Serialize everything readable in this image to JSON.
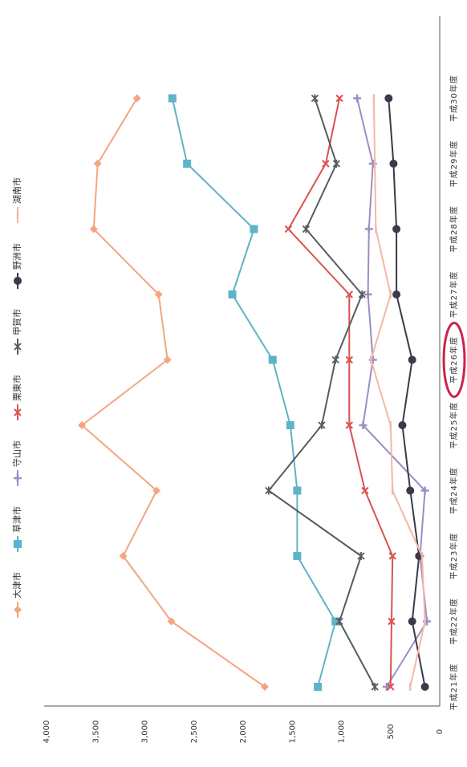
{
  "chart_data": {
    "type": "line",
    "orientation": "rotated-90",
    "categories": [
      "平成21年度",
      "平成22年度",
      "平成23年度",
      "平成24年度",
      "平成25年度",
      "平成26年度",
      "平成27年度",
      "平成28年度",
      "平成29年度",
      "平成30年度"
    ],
    "ylim": [
      0,
      4000
    ],
    "yticks": [
      0,
      500,
      1000,
      1500,
      2000,
      2500,
      3000,
      3500,
      4000
    ],
    "ytick_labels": [
      "0",
      "500",
      "1,000",
      "1,500",
      "2,000",
      "2,500",
      "3,000",
      "3,500",
      "4,000"
    ],
    "grid": false,
    "legend_position": "top",
    "highlighted_category": "平成26年度",
    "highlight_color": "#c8254e",
    "series": [
      {
        "name": "大津市",
        "color": "#f4a581",
        "marker": "diamond",
        "values": [
          1780,
          2730,
          3220,
          2880,
          3640,
          2770,
          2860,
          3520,
          3480,
          3080
        ]
      },
      {
        "name": "草津市",
        "color": "#5fb3c8",
        "marker": "square",
        "values": [
          1240,
          1060,
          1450,
          1450,
          1520,
          1700,
          2110,
          1890,
          2570,
          2720
        ]
      },
      {
        "name": "守山市",
        "color": "#9b8ec6",
        "marker": "plus",
        "values": [
          540,
          130,
          200,
          150,
          780,
          680,
          730,
          720,
          680,
          840
        ]
      },
      {
        "name": "栗東市",
        "color": "#d9534f",
        "marker": "x",
        "values": [
          500,
          490,
          480,
          760,
          920,
          920,
          920,
          1540,
          1160,
          1020
        ]
      },
      {
        "name": "甲賀市",
        "color": "#555d60",
        "marker": "star",
        "values": [
          660,
          1020,
          800,
          1740,
          1200,
          1060,
          790,
          1360,
          1050,
          1270
        ]
      },
      {
        "name": "野洲市",
        "color": "#3a3a4a",
        "marker": "circle",
        "values": [
          150,
          280,
          210,
          300,
          380,
          280,
          440,
          440,
          470,
          520
        ]
      },
      {
        "name": "湖南市",
        "color": "#f3b8a6",
        "marker": "dash",
        "values": [
          300,
          150,
          180,
          480,
          500,
          700,
          500,
          650,
          660,
          670
        ]
      }
    ]
  }
}
